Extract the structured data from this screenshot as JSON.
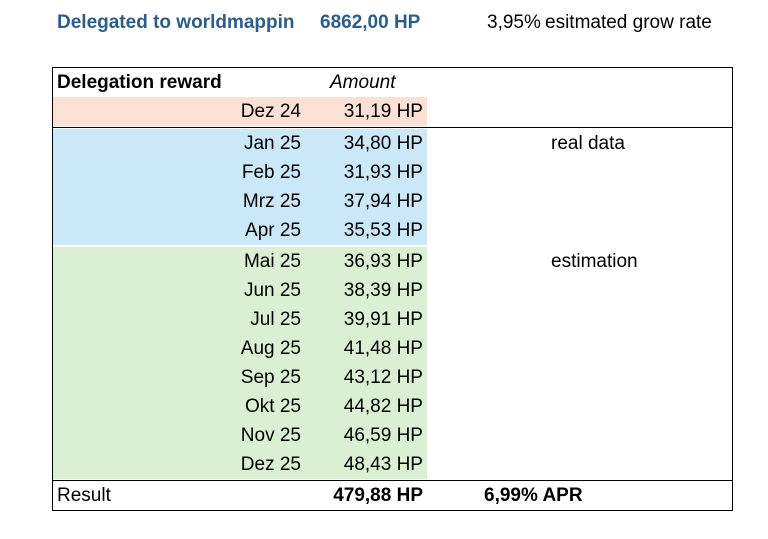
{
  "header": {
    "title": "Delegated to worldmappin",
    "delegated_hp": "6862,00 HP",
    "grow_rate": "3,95%",
    "grow_rate_label": "esitmated grow rate"
  },
  "table": {
    "head_label": "Delegation reward",
    "head_amount": "Amount",
    "rows": [
      {
        "month": "Dez 24",
        "amount": "31,19 HP"
      },
      {
        "month": "Jan 25",
        "amount": "34,80 HP"
      },
      {
        "month": "Feb 25",
        "amount": "31,93 HP"
      },
      {
        "month": "Mrz 25",
        "amount": "37,94 HP"
      },
      {
        "month": "Apr 25",
        "amount": "35,53 HP"
      },
      {
        "month": "Mai 25",
        "amount": "36,93 HP"
      },
      {
        "month": "Jun 25",
        "amount": "38,39 HP"
      },
      {
        "month": "Jul 25",
        "amount": "39,91 HP"
      },
      {
        "month": "Aug 25",
        "amount": "41,48 HP"
      },
      {
        "month": "Sep 25",
        "amount": "43,12 HP"
      },
      {
        "month": "Okt 25",
        "amount": "44,82 HP"
      },
      {
        "month": "Nov 25",
        "amount": "46,59 HP"
      },
      {
        "month": "Dez 25",
        "amount": "48,43 HP"
      }
    ],
    "note_real": "real data",
    "note_estimation": "estimation",
    "result_label": "Result",
    "result_amount": "479,88 HP",
    "result_apr": "6,99% APR"
  },
  "colors": {
    "header_blue": "#2e5c8a",
    "row_peach": "#fbe0d4",
    "row_blue": "#cbe8f8",
    "row_green": "#d9f0d3"
  }
}
